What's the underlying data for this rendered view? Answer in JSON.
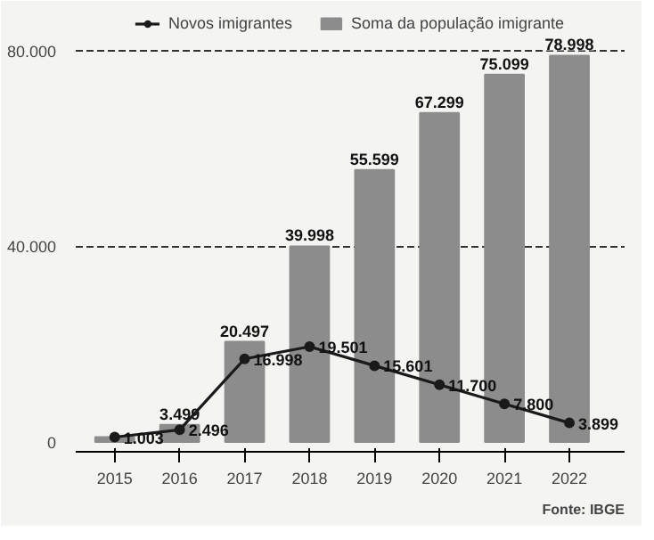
{
  "chart_data": {
    "type": "bar",
    "categories": [
      "2015",
      "2016",
      "2017",
      "2018",
      "2019",
      "2020",
      "2021",
      "2022"
    ],
    "series": [
      {
        "name": "Soma da população imigrante",
        "color": "#8c8c8c",
        "values": [
          1003,
          3499,
          20497,
          39998,
          55599,
          67299,
          75099,
          78998
        ],
        "value_labels": [
          null,
          "3.499",
          "20.497",
          "39.998",
          "55.599",
          "67.299",
          "75.099",
          "78.998"
        ]
      },
      {
        "name": "Novos imigrantes",
        "type": "line",
        "color": "#1a1a1a",
        "values": [
          1003,
          2496,
          16998,
          19501,
          15601,
          11700,
          7800,
          3899
        ],
        "value_labels": [
          "1.003",
          "2.496",
          "16.998",
          "19.501",
          "15.601",
          "11.700",
          "7.800",
          "3.899"
        ]
      }
    ],
    "ylim": [
      -2000,
      88000
    ],
    "yticks": [
      0,
      {
        "value": 40000,
        "label": "40.000"
      },
      {
        "value": 80000,
        "label": "80.000"
      }
    ],
    "grid": "y",
    "legend": "top",
    "marker": "circle",
    "line_style": "solid",
    "annotations": [
      "Fonte: IBGE"
    ]
  }
}
